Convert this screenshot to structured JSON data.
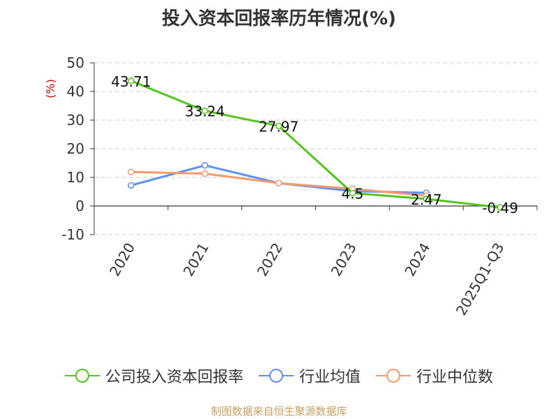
{
  "chart_data": {
    "type": "line",
    "title": "投入资本回报率历年情况(%)",
    "ylabel": "(%)",
    "categories": [
      "2020",
      "2021",
      "2022",
      "2023",
      "2024",
      "2025Q1-Q3"
    ],
    "ylim": [
      -10,
      50
    ],
    "yticks": [
      50,
      40,
      30,
      20,
      10,
      0,
      -10
    ],
    "grid": true,
    "legend_position": "bottom",
    "series": [
      {
        "name": "公司投入资本回报率",
        "color": "#52c41a",
        "values": [
          43.71,
          33.24,
          27.97,
          4.5,
          2.47,
          -0.49
        ],
        "labels": [
          "43.71",
          "33.24",
          "27.97",
          "4.5",
          "2.47",
          "-0.49"
        ]
      },
      {
        "name": "行业均值",
        "color": "#5b8ff9",
        "values": [
          7.2,
          14.2,
          8.0,
          5.2,
          4.6,
          null
        ]
      },
      {
        "name": "行业中位数",
        "color": "#f59a6b",
        "values": [
          11.9,
          11.3,
          8.0,
          6.0,
          3.6,
          null
        ]
      }
    ]
  },
  "colors": {
    "ylabel": "#cc0000",
    "source": "#c8a060",
    "axis": "#333333",
    "grid": "#cccccc"
  },
  "source_note": "制图数据来自恒生聚源数据库"
}
